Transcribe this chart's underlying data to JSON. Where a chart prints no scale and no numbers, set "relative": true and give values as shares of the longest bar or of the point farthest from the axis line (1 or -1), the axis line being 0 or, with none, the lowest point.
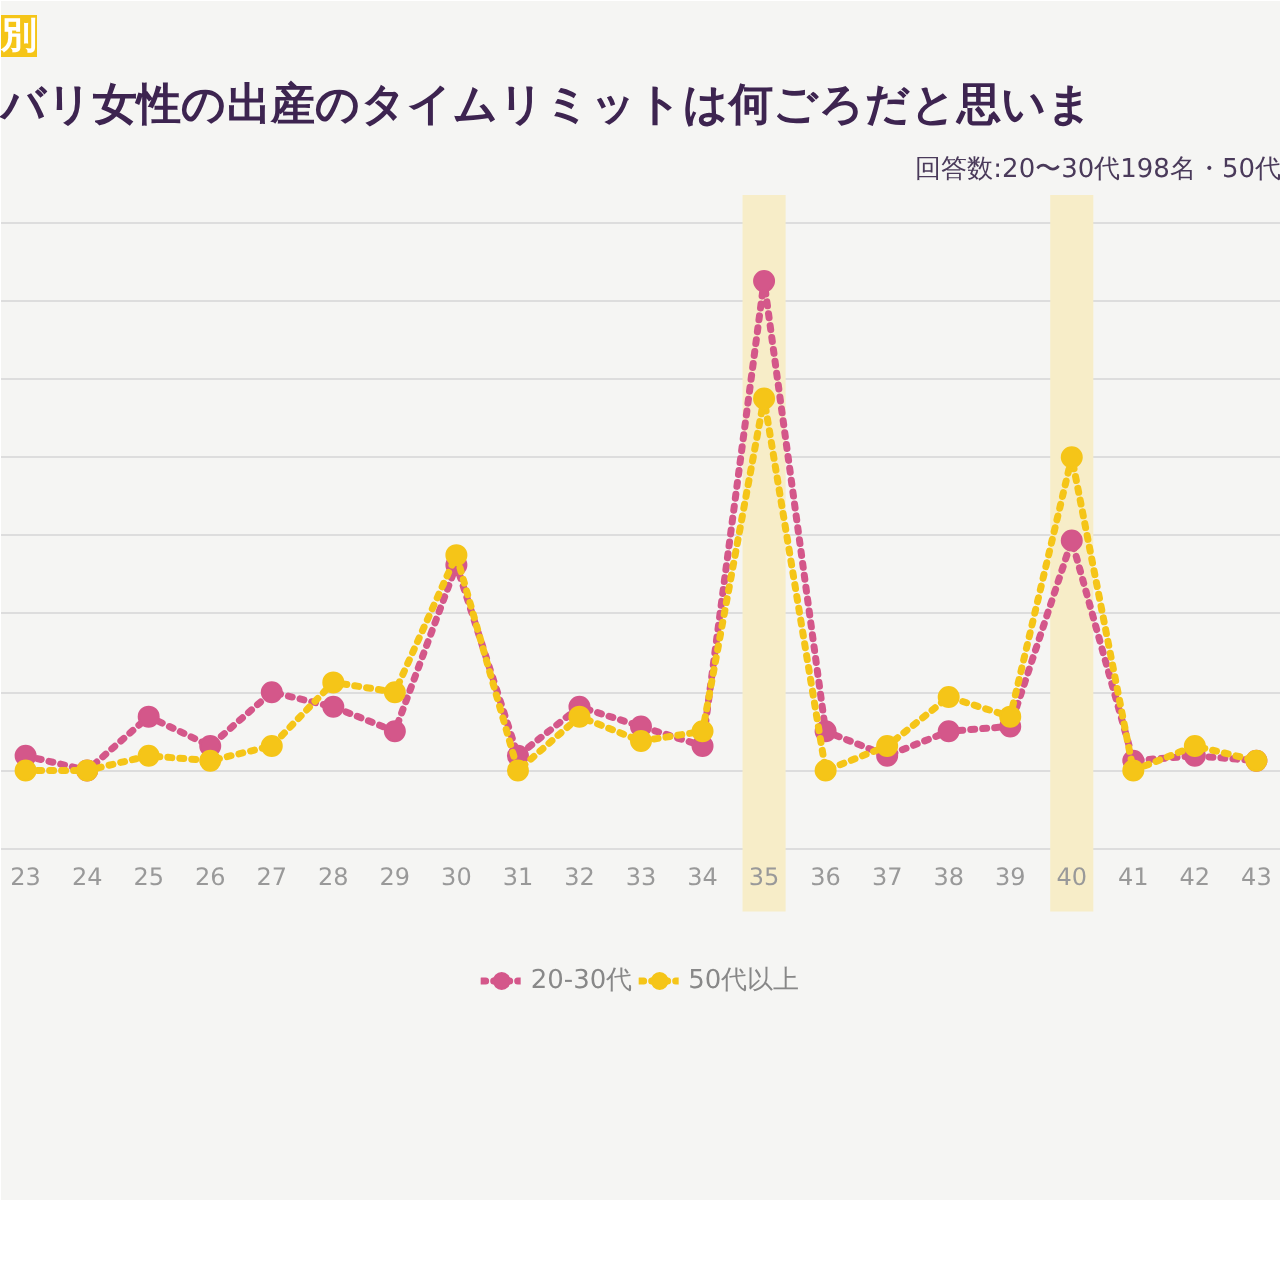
{
  "chart_data": {
    "type": "line",
    "title": "バリ女性の出産のタイムリミットは何ごろだと思いま",
    "subtitle": "回答数:20〜30代198名・50代",
    "annotations": [
      "別"
    ],
    "x": [
      23,
      24,
      25,
      26,
      27,
      28,
      29,
      30,
      31,
      32,
      33,
      34,
      35,
      36,
      37,
      38,
      39,
      40,
      41,
      42,
      43
    ],
    "xlim": [
      22.6,
      43.4
    ],
    "xticks": [
      23,
      24,
      25,
      26,
      27,
      28,
      29,
      30,
      31,
      32,
      33,
      34,
      35,
      36,
      37,
      38,
      39,
      40,
      41,
      42,
      43
    ],
    "relative": true,
    "grid": "y",
    "legend": "bottom",
    "marker": "circle",
    "line_style": "dotted",
    "bands": [
      {
        "axis": "x",
        "from": 34.65,
        "to": 35.35,
        "color": "#f7edc8"
      },
      {
        "axis": "x",
        "from": 39.65,
        "to": 40.35,
        "color": "#f7edc8"
      }
    ],
    "series": [
      {
        "name": "20-30代",
        "color": "#d4578a",
        "values": [
          0.03,
          0,
          0.11,
          0.05,
          0.16,
          0.13,
          0.08,
          0.42,
          0.03,
          0.13,
          0.09,
          0.05,
          1,
          0.08,
          0.03,
          0.08,
          0.09,
          0.47,
          0.02,
          0.03,
          0.02
        ]
      },
      {
        "name": "50代以上",
        "color": "#f5c518",
        "values": [
          0,
          0,
          0.03,
          0.02,
          0.05,
          0.18,
          0.16,
          0.44,
          0,
          0.11,
          0.06,
          0.08,
          0.76,
          0,
          0.05,
          0.15,
          0.11,
          0.64,
          0,
          0.05,
          0.02
        ]
      }
    ]
  }
}
